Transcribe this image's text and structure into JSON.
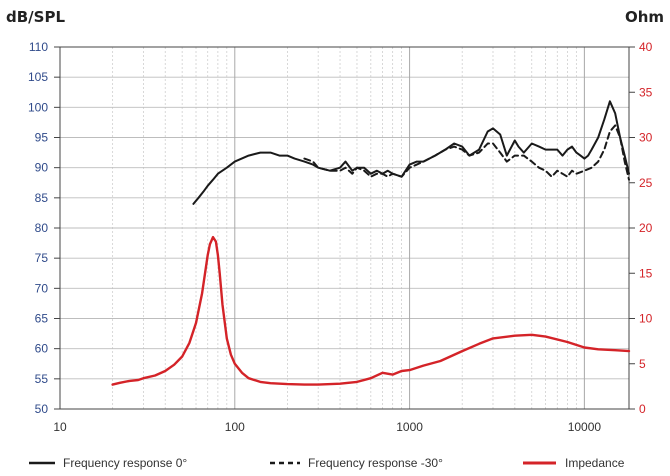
{
  "chart_data": {
    "type": "line",
    "title": "",
    "ylabel_left": "dB/SPL",
    "ylabel_right": "Ohm",
    "xscale": "log",
    "xlim": [
      10,
      18000
    ],
    "ylim_left": [
      50,
      110
    ],
    "ylim_right": [
      0,
      40
    ],
    "grid": true,
    "legend_position": "bottom",
    "x_ticks": [
      "10",
      "100",
      "1000",
      "10000"
    ],
    "y_left_ticks": [
      "50",
      "55",
      "60",
      "65",
      "70",
      "75",
      "80",
      "85",
      "90",
      "95",
      "100",
      "105",
      "110"
    ],
    "y_right_ticks": [
      "0",
      "5",
      "10",
      "15",
      "20",
      "25",
      "30",
      "35",
      "40"
    ],
    "colors": {
      "fr0": "#1a1a1a",
      "fr30": "#1a1a1a",
      "impedance": "#d42328",
      "left_axis": "#2f4a8a",
      "right_axis": "#d42328"
    },
    "series": [
      {
        "name": "Frequency response 0°",
        "axis": "left",
        "style": "solid",
        "x": [
          58,
          62,
          66,
          70,
          75,
          80,
          90,
          100,
          120,
          140,
          160,
          180,
          200,
          220,
          250,
          280,
          300,
          350,
          400,
          430,
          470,
          500,
          550,
          600,
          650,
          700,
          750,
          800,
          900,
          1000,
          1100,
          1200,
          1400,
          1600,
          1800,
          2000,
          2200,
          2500,
          2800,
          3000,
          3300,
          3600,
          4000,
          4200,
          4500,
          5000,
          5500,
          6000,
          6500,
          7000,
          7500,
          8000,
          8500,
          9000,
          9500,
          10000,
          10500,
          11000,
          12000,
          13000,
          14000,
          15000,
          16000,
          17000,
          18000
        ],
        "y": [
          84,
          85,
          86,
          87,
          88,
          89,
          90,
          91,
          92,
          92.5,
          92.5,
          92,
          92,
          91.5,
          91,
          90.5,
          90,
          89.5,
          90,
          91,
          89.5,
          90,
          90,
          89,
          89.5,
          89,
          89.5,
          89,
          88.5,
          90.5,
          91,
          91,
          92,
          93,
          94,
          93.5,
          92,
          93,
          96,
          96.5,
          95.5,
          92,
          94.5,
          93.5,
          92.5,
          94,
          93.5,
          93,
          93,
          93,
          92,
          93,
          93.5,
          92.5,
          92,
          91.5,
          92,
          93,
          95,
          98,
          101,
          99,
          95,
          92,
          89
        ]
      },
      {
        "name": "Frequency response -30°",
        "axis": "left",
        "style": "dashed",
        "x": [
          250,
          280,
          300,
          350,
          400,
          430,
          470,
          500,
          550,
          600,
          650,
          700,
          750,
          800,
          900,
          1000,
          1100,
          1200,
          1400,
          1600,
          1800,
          2000,
          2200,
          2500,
          2800,
          3000,
          3300,
          3600,
          4000,
          4500,
          5000,
          5500,
          6000,
          6500,
          7000,
          7500,
          8000,
          8500,
          9000,
          10000,
          11000,
          12000,
          13000,
          14000,
          15000,
          16000,
          17000,
          18000
        ],
        "y": [
          91.5,
          91,
          90,
          89.5,
          89.5,
          90,
          89,
          90,
          89.5,
          88.5,
          89,
          89,
          88.5,
          89,
          88.5,
          90,
          90.5,
          91,
          92,
          93,
          93.5,
          93,
          92,
          92.5,
          94,
          94,
          92.5,
          91,
          92,
          92,
          91,
          90,
          89.5,
          88.5,
          89.5,
          89,
          88.5,
          89.5,
          89,
          89.5,
          90,
          91,
          93,
          96,
          97,
          95,
          91,
          88
        ]
      },
      {
        "name": "Impedance",
        "axis": "right",
        "style": "solid",
        "x": [
          20,
          22,
          25,
          28,
          30,
          35,
          40,
          45,
          50,
          55,
          60,
          65,
          70,
          72,
          75,
          78,
          80,
          82,
          85,
          90,
          95,
          100,
          110,
          120,
          140,
          160,
          200,
          250,
          300,
          400,
          500,
          600,
          700,
          800,
          900,
          1000,
          1200,
          1500,
          2000,
          2500,
          3000,
          4000,
          5000,
          6000,
          8000,
          10000,
          12000,
          15000,
          18000
        ],
        "y": [
          2.7,
          2.9,
          3.1,
          3.2,
          3.4,
          3.7,
          4.2,
          4.9,
          5.8,
          7.3,
          9.5,
          12.8,
          17,
          18.2,
          19,
          18.5,
          17,
          15,
          11.5,
          7.8,
          6,
          5,
          4,
          3.4,
          3.0,
          2.85,
          2.75,
          2.7,
          2.7,
          2.8,
          3.0,
          3.4,
          4.0,
          3.8,
          4.2,
          4.3,
          4.8,
          5.3,
          6.4,
          7.2,
          7.8,
          8.1,
          8.2,
          8.0,
          7.4,
          6.8,
          6.6,
          6.5,
          6.4
        ]
      }
    ]
  }
}
